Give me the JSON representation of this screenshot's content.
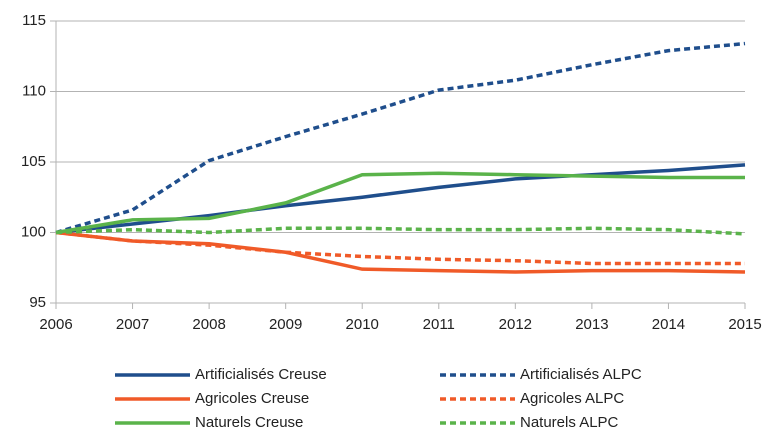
{
  "chart_data": {
    "type": "line",
    "x": [
      2006,
      2007,
      2008,
      2009,
      2010,
      2011,
      2012,
      2013,
      2014,
      2015
    ],
    "xlim": [
      2006,
      2015
    ],
    "xticks": [
      2006,
      2007,
      2008,
      2009,
      2010,
      2011,
      2012,
      2013,
      2014,
      2015
    ],
    "ylim": [
      95,
      115
    ],
    "yticks": [
      95,
      100,
      105,
      110,
      115
    ],
    "grid": true,
    "legend": "bottom",
    "series": [
      {
        "name": "Artificialisés Creuse",
        "color": "#1f4e8c",
        "style": "solid",
        "values": [
          100,
          100.6,
          101.2,
          101.9,
          102.5,
          103.2,
          103.8,
          104.1,
          104.4,
          104.8
        ]
      },
      {
        "name": "Artificialisés ALPC",
        "color": "#1f4e8c",
        "style": "dashed",
        "values": [
          100,
          101.6,
          105.1,
          106.8,
          108.4,
          110.1,
          110.8,
          111.9,
          112.9,
          113.4
        ]
      },
      {
        "name": "Agricoles Creuse",
        "color": "#f05a28",
        "style": "solid",
        "values": [
          100,
          99.4,
          99.2,
          98.6,
          97.4,
          97.3,
          97.2,
          97.3,
          97.3,
          97.2
        ]
      },
      {
        "name": "Agricoles ALPC",
        "color": "#f05a28",
        "style": "dashed",
        "values": [
          100,
          99.4,
          99.1,
          98.6,
          98.3,
          98.1,
          98.0,
          97.8,
          97.8,
          97.8
        ]
      },
      {
        "name": "Naturels Creuse",
        "color": "#5ab34a",
        "style": "solid",
        "values": [
          100,
          100.9,
          101.0,
          102.1,
          104.1,
          104.2,
          104.1,
          104.0,
          103.9,
          103.9
        ]
      },
      {
        "name": "Naturels ALPC",
        "color": "#5ab34a",
        "style": "dashed",
        "values": [
          100,
          100.2,
          100.0,
          100.3,
          100.3,
          100.2,
          100.2,
          100.3,
          100.2,
          99.9
        ]
      }
    ]
  }
}
